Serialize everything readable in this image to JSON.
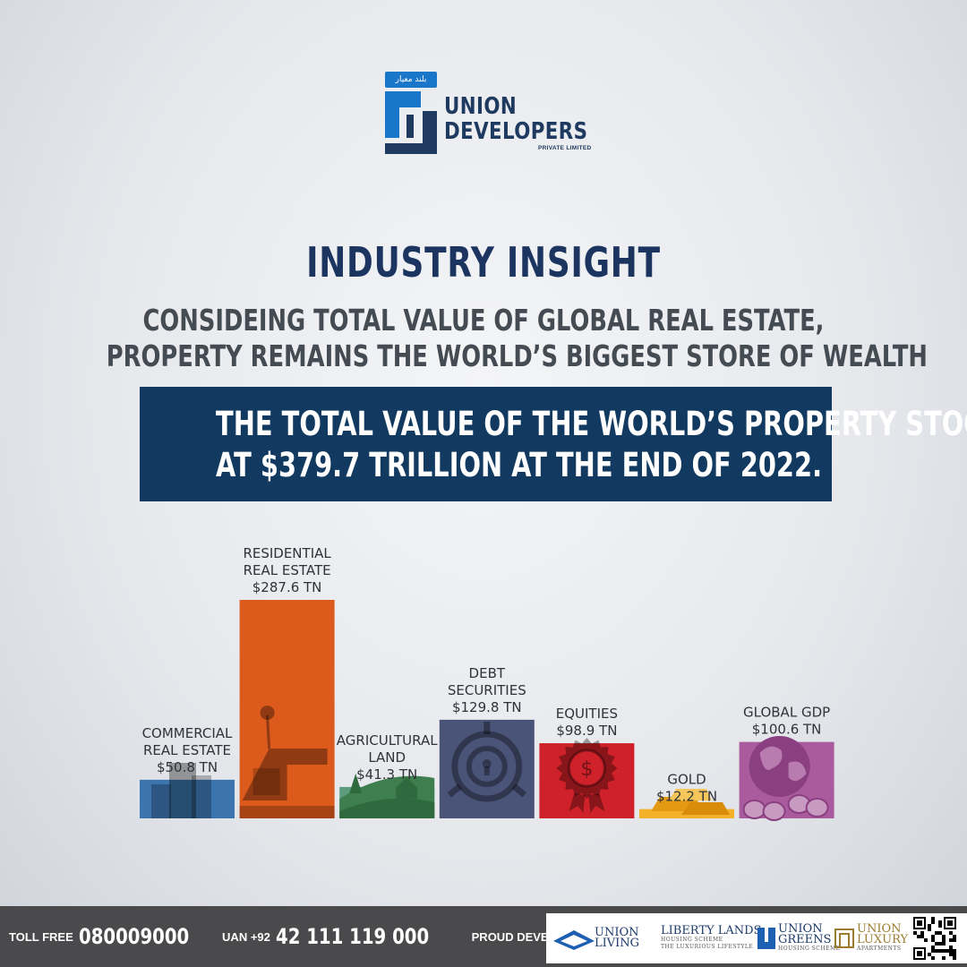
{
  "logo": {
    "urdu_tag": "بلند معیار زندگی",
    "word1": "UNION",
    "word2": "DEVELOPERS",
    "sub": "PRIVATE LIMITED"
  },
  "headline": "INDUSTRY INSIGHT",
  "subheadline_line1": "CONSIDEING TOTAL VALUE OF GLOBAL REAL ESTATE,",
  "subheadline_line2": "PROPERTY REMAINS THE WORLD’S BIGGEST STORE OF WEALTH",
  "banner_line1": "THE TOTAL VALUE OF THE WORLD’S PROPERTY STOOD",
  "banner_line2": "AT $379.7 TRILLION AT THE END OF 2022.",
  "chart_data": {
    "type": "bar",
    "unit": "TN",
    "categories": [
      [
        "COMMERCIAL",
        "REAL ESTATE"
      ],
      [
        "RESIDENTIAL",
        "REAL ESTATE"
      ],
      [
        "AGRICULTURAL",
        "LAND"
      ],
      [
        "DEBT",
        "SECURITIES"
      ],
      [
        "EQUITIES"
      ],
      [
        "GOLD"
      ],
      [
        "GLOBAL GDP"
      ]
    ],
    "values": [
      50.8,
      287.6,
      41.3,
      129.8,
      98.9,
      12.2,
      100.6
    ],
    "value_labels": [
      "$50.8 TN",
      "$287.6 TN",
      "$41.3 TN",
      "$129.8 TN",
      "$98.9 TN",
      "$12.2 TN",
      "$100.6 TN"
    ],
    "colors": [
      "#3c75ae",
      "#dc5a1c",
      "#5e9c80",
      "#4a5478",
      "#cf2129",
      "#f3b029",
      "#a95b9d"
    ],
    "icons": [
      "office-building-icon",
      "house-palm-icon",
      "farm-field-icon",
      "vault-safe-icon",
      "dollar-seal-icon",
      "gold-bars-icon",
      "globe-coins-icon"
    ]
  },
  "footer": {
    "toll_free_label": "TOLL FREE",
    "toll_free_number": "080009000",
    "uan_label": "UAN +92",
    "uan_number": "42 111 119 000",
    "proud_label": "PROUD DEVELOPERS OF",
    "brands": {
      "living": [
        "UNION",
        "LIVING"
      ],
      "liberty": [
        "LIBERTY LANDS",
        "HOUSING SCHEME",
        "THE LUXURIOUS LIFESTYLE"
      ],
      "greens": [
        "UNION",
        "GREENS",
        "HOUSING SCHEME"
      ],
      "luxury": [
        "UNION",
        "LUXURY",
        "APARTMENTS"
      ]
    }
  }
}
